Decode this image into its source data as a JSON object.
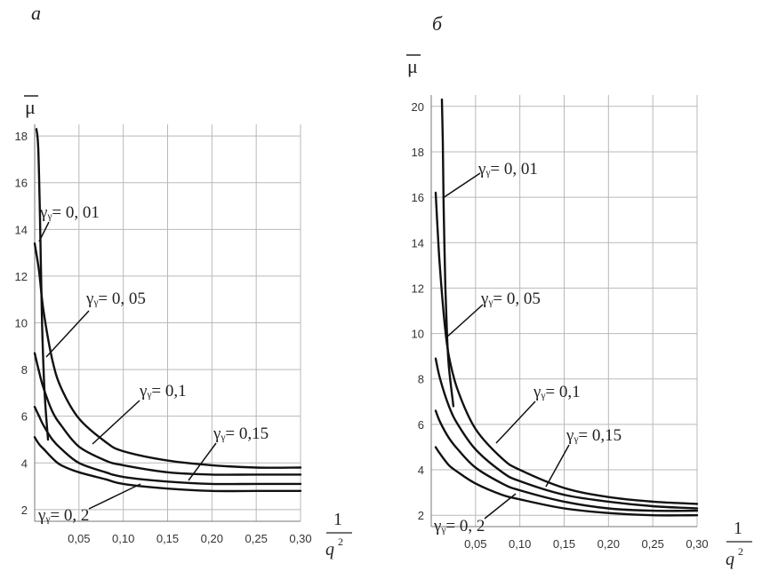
{
  "chart_data": [
    {
      "type": "line",
      "panel_label": "а",
      "ylabel": "μ",
      "xlabel_numerator": "1",
      "xlabel_denominator": "q",
      "xlabel_exponent": "2",
      "xlim": [
        0,
        0.3
      ],
      "ylim": [
        1.5,
        18.5
      ],
      "xticks": [
        0.05,
        0.1,
        0.15,
        0.2,
        0.25,
        0.3
      ],
      "xtick_labels": [
        "0,05",
        "0,10",
        "0,15",
        "0,20",
        "0,25",
        "0,30"
      ],
      "yticks": [
        2,
        4,
        6,
        8,
        10,
        12,
        14,
        16,
        18
      ],
      "ytick_labels": [
        "2",
        "4",
        "6",
        "8",
        "10",
        "12",
        "14",
        "16",
        "18"
      ],
      "grid": true,
      "series": [
        {
          "name": "γy= 0, 01",
          "label": "γᵧ= 0, 01",
          "x": [
            0.002,
            0.004,
            0.006,
            0.008,
            0.01,
            0.012,
            0.015
          ],
          "y": [
            18.3,
            17.5,
            14.5,
            10.5,
            8.0,
            6.5,
            5.0
          ]
        },
        {
          "name": "γy= 0, 05",
          "label": "γᵧ= 0, 05",
          "x": [
            0.0,
            0.005,
            0.01,
            0.02,
            0.03,
            0.05,
            0.08,
            0.1,
            0.15,
            0.2,
            0.25,
            0.3
          ],
          "y": [
            13.4,
            12.2,
            10.5,
            8.4,
            7.2,
            5.9,
            4.9,
            4.5,
            4.1,
            3.9,
            3.8,
            3.8
          ]
        },
        {
          "name": "γy= 0,1",
          "label": "γᵧ= 0,1",
          "x": [
            0.0,
            0.005,
            0.01,
            0.02,
            0.03,
            0.05,
            0.08,
            0.1,
            0.15,
            0.2,
            0.25,
            0.3
          ],
          "y": [
            8.7,
            7.9,
            7.2,
            6.2,
            5.6,
            4.7,
            4.1,
            3.9,
            3.6,
            3.5,
            3.5,
            3.5
          ]
        },
        {
          "name": "γy= 0,15",
          "label": "γᵧ= 0,15",
          "x": [
            0.0,
            0.005,
            0.01,
            0.02,
            0.03,
            0.05,
            0.08,
            0.1,
            0.15,
            0.2,
            0.25,
            0.3
          ],
          "y": [
            6.4,
            6.0,
            5.6,
            5.0,
            4.6,
            4.0,
            3.6,
            3.4,
            3.2,
            3.1,
            3.1,
            3.1
          ]
        },
        {
          "name": "γy= 0, 2",
          "label": "γᵧ= 0, 2",
          "x": [
            0.0,
            0.005,
            0.01,
            0.02,
            0.03,
            0.05,
            0.08,
            0.1,
            0.15,
            0.2,
            0.25,
            0.3
          ],
          "y": [
            5.1,
            4.8,
            4.6,
            4.2,
            3.9,
            3.6,
            3.3,
            3.1,
            2.9,
            2.8,
            2.8,
            2.8
          ]
        }
      ]
    },
    {
      "type": "line",
      "panel_label": "б",
      "ylabel": "μ",
      "xlabel_numerator": "1",
      "xlabel_denominator": "q",
      "xlabel_exponent": "2",
      "xlim": [
        0,
        0.3
      ],
      "ylim": [
        1.5,
        20.5
      ],
      "xticks": [
        0.05,
        0.1,
        0.15,
        0.2,
        0.25,
        0.3
      ],
      "xtick_labels": [
        "0,05",
        "0,10",
        "0,15",
        "0,20",
        "0,25",
        "0,30"
      ],
      "yticks": [
        2,
        4,
        6,
        8,
        10,
        12,
        14,
        16,
        18,
        20
      ],
      "ytick_labels": [
        "2",
        "4",
        "6",
        "8",
        "10",
        "12",
        "14",
        "16",
        "18",
        "20"
      ],
      "grid": true,
      "series": [
        {
          "name": "γy= 0, 01",
          "label": "γᵧ= 0, 01",
          "x": [
            0.012,
            0.013,
            0.014,
            0.016,
            0.018,
            0.02,
            0.025
          ],
          "y": [
            20.3,
            18.5,
            15.5,
            12.0,
            9.8,
            8.5,
            6.8
          ]
        },
        {
          "name": "γy= 0, 05",
          "label": "γᵧ= 0, 05",
          "x": [
            0.005,
            0.008,
            0.01,
            0.015,
            0.02,
            0.03,
            0.05,
            0.08,
            0.1,
            0.15,
            0.2,
            0.25,
            0.3
          ],
          "y": [
            16.2,
            14.0,
            12.8,
            10.5,
            9.0,
            7.5,
            5.8,
            4.5,
            4.0,
            3.2,
            2.8,
            2.6,
            2.5
          ]
        },
        {
          "name": "γy= 0,1",
          "label": "γᵧ= 0,1",
          "x": [
            0.005,
            0.01,
            0.02,
            0.03,
            0.05,
            0.08,
            0.1,
            0.15,
            0.2,
            0.25,
            0.3
          ],
          "y": [
            8.9,
            8.0,
            6.8,
            6.0,
            4.9,
            3.9,
            3.5,
            2.9,
            2.6,
            2.4,
            2.3
          ]
        },
        {
          "name": "γy= 0,15",
          "label": "γᵧ= 0,15",
          "x": [
            0.005,
            0.01,
            0.02,
            0.03,
            0.05,
            0.08,
            0.1,
            0.15,
            0.2,
            0.25,
            0.3
          ],
          "y": [
            6.6,
            6.1,
            5.4,
            4.9,
            4.1,
            3.4,
            3.1,
            2.6,
            2.3,
            2.2,
            2.2
          ]
        },
        {
          "name": "γy= 0, 2",
          "label": "γᵧ= 0, 2",
          "x": [
            0.005,
            0.01,
            0.02,
            0.03,
            0.05,
            0.08,
            0.1,
            0.15,
            0.2,
            0.25,
            0.3
          ],
          "y": [
            5.0,
            4.7,
            4.2,
            3.9,
            3.4,
            2.9,
            2.7,
            2.3,
            2.1,
            2.0,
            2.0
          ]
        }
      ]
    }
  ]
}
